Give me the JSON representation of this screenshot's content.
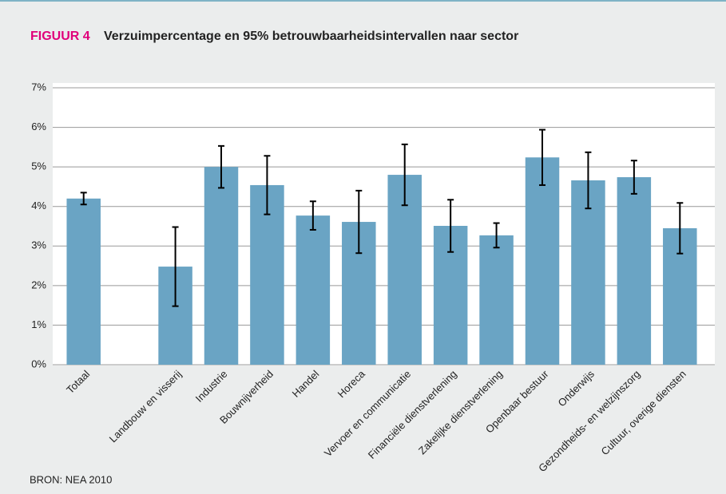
{
  "chart_data": {
    "type": "bar",
    "figure_label": "FIGUUR 4",
    "title": "Verzuimpercentage en 95% betrouwbaarheidsintervallen naar sector",
    "source": "BRON: NEA 2010",
    "categories": [
      "Totaal",
      null,
      "Landbouw en visserij",
      "Industrie",
      "Bouwnijverheid",
      "Handel",
      "Horeca",
      "Vervoer en communicatie",
      "Financiële dienstverlening",
      "Zakelijke dienstverlening",
      "Openbaar bestuur",
      "Onderwijs",
      "Gezondheids- en welzijnszorg",
      "Cultuur, overige diensten"
    ],
    "values": [
      4.2,
      null,
      2.48,
      5.0,
      4.54,
      3.77,
      3.61,
      4.8,
      3.51,
      3.27,
      5.24,
      4.66,
      4.74,
      3.45
    ],
    "errors": [
      0.15,
      null,
      1.0,
      0.53,
      0.74,
      0.36,
      0.79,
      0.77,
      0.66,
      0.31,
      0.7,
      0.71,
      0.42,
      0.64
    ],
    "color": "#6aa4c4",
    "ylim": [
      0,
      7
    ],
    "yticks": [
      {
        "value": 0,
        "label": "0%"
      },
      {
        "value": 1,
        "label": "1%"
      },
      {
        "value": 2,
        "label": "2%"
      },
      {
        "value": 3,
        "label": "3%"
      },
      {
        "value": 4,
        "label": "4%"
      },
      {
        "value": 5,
        "label": "5%"
      },
      {
        "value": 6,
        "label": "6%"
      },
      {
        "value": 7,
        "label": "7%"
      }
    ],
    "grid": true
  }
}
